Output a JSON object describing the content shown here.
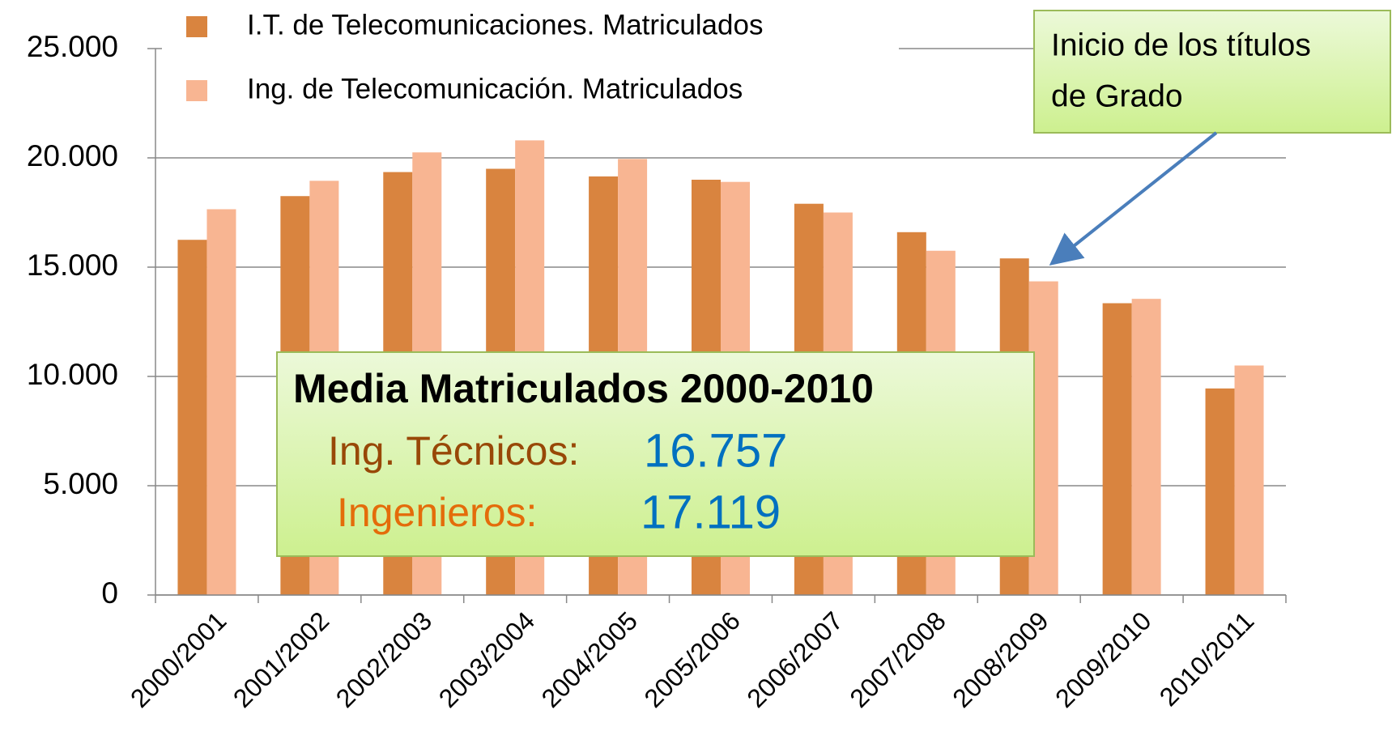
{
  "chart_data": {
    "type": "bar",
    "categories": [
      "2000/2001",
      "2001/2002",
      "2002/2003",
      "2003/2004",
      "2004/2005",
      "2005/2006",
      "2006/2007",
      "2007/2008",
      "2008/2009",
      "2009/2010",
      "2010/2011"
    ],
    "series": [
      {
        "name": "I.T. de Telecomunicaciones. Matriculados",
        "color": "#d9843f",
        "values": [
          16250,
          18250,
          19350,
          19500,
          19150,
          19000,
          17900,
          16600,
          15400,
          13350,
          9450
        ]
      },
      {
        "name": "Ing. de Telecomunicación. Matriculados",
        "color": "#f8b592",
        "values": [
          17650,
          18950,
          20250,
          20800,
          19950,
          18900,
          17500,
          15750,
          14350,
          13550,
          10500
        ]
      }
    ],
    "ylim": [
      0,
      25000
    ],
    "yticks": [
      0,
      {
        "value": 5000,
        "label": "5.000"
      },
      {
        "value": 10000,
        "label": "10.000"
      },
      {
        "value": 15000,
        "label": "15.000"
      },
      {
        "value": 20000,
        "label": "20.000"
      },
      {
        "value": 25000,
        "label": "25.000"
      }
    ],
    "grid": true,
    "legend": "top",
    "callout": [
      "Inicio de los títulos",
      "de Grado"
    ],
    "summary": {
      "title": "Media Matriculados 2000-2010",
      "rows": [
        {
          "label": "Ing. Técnicos:",
          "value": "16.757"
        },
        {
          "label": "Ingenieros:",
          "value": "17.119"
        }
      ]
    }
  }
}
